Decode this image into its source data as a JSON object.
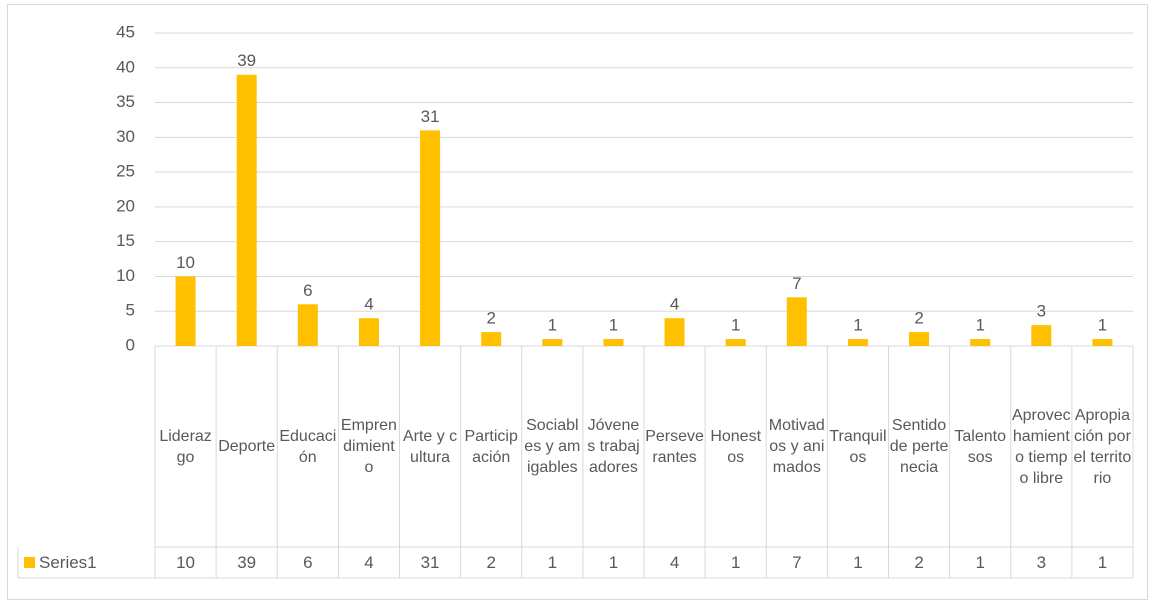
{
  "chart_data": {
    "type": "bar",
    "categories": [
      "Liderazgo",
      "Deporte",
      "Educación",
      "Emprendimiento",
      "Arte y cultura",
      "Participación",
      "Sociables y amigables",
      "Jóvenes trabajadores",
      "Perseverantes",
      "Honestos",
      "Motivados y animados",
      "Tranquilos",
      "Sentido de pertenecia",
      "Talentosos",
      "Aprovechamiento tiempo libre",
      "Apropiación por el territorio"
    ],
    "series": [
      {
        "name": "Series1",
        "color": "#FFC000",
        "values": [
          10,
          39,
          6,
          4,
          31,
          2,
          1,
          1,
          4,
          1,
          7,
          1,
          2,
          1,
          3,
          1
        ]
      }
    ],
    "ylim": [
      0,
      45
    ],
    "yticks": [
      0,
      5,
      10,
      15,
      20,
      25,
      30,
      35,
      40,
      45
    ],
    "grid": true,
    "legend": "data-table"
  }
}
